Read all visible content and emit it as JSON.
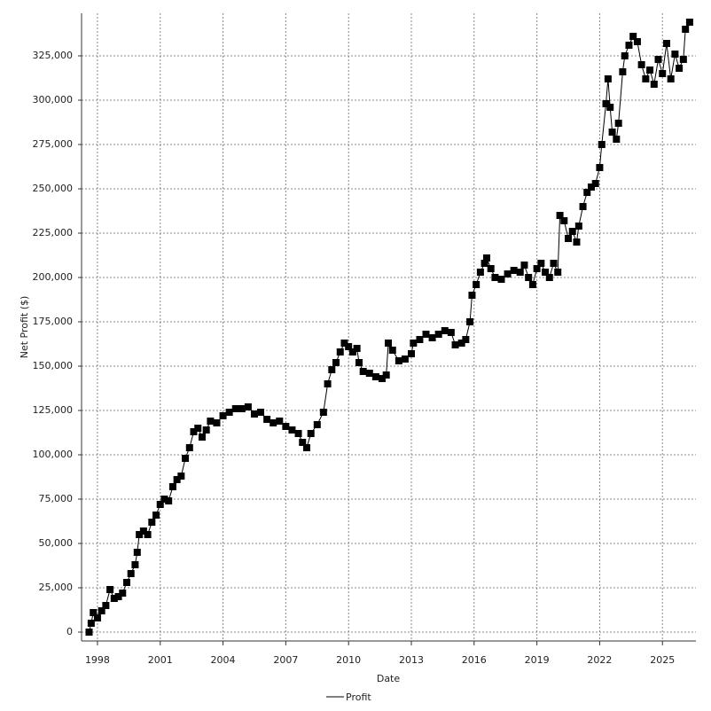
{
  "chart_data": {
    "type": "line",
    "x_label": "Date",
    "y_label": "Net Profit ($)",
    "x": [
      1997.6,
      1997.7,
      1997.8,
      1998.0,
      1998.2,
      1998.4,
      1998.6,
      1998.8,
      1999.0,
      1999.2,
      1999.4,
      1999.6,
      1999.8,
      1999.9,
      2000.0,
      2000.2,
      2000.4,
      2000.6,
      2000.8,
      2001.0,
      2001.2,
      2001.4,
      2001.6,
      2001.8,
      2002.0,
      2002.2,
      2002.4,
      2002.6,
      2002.8,
      2003.0,
      2003.2,
      2003.4,
      2003.7,
      2004.0,
      2004.3,
      2004.6,
      2004.9,
      2005.2,
      2005.5,
      2005.8,
      2006.1,
      2006.4,
      2006.7,
      2007.0,
      2007.3,
      2007.6,
      2007.8,
      2008.0,
      2008.2,
      2008.5,
      2008.8,
      2009.0,
      2009.2,
      2009.4,
      2009.6,
      2009.8,
      2010.0,
      2010.2,
      2010.4,
      2010.5,
      2010.7,
      2011.0,
      2011.3,
      2011.6,
      2011.8,
      2011.9,
      2012.1,
      2012.4,
      2012.7,
      2013.0,
      2013.1,
      2013.4,
      2013.7,
      2014.0,
      2014.3,
      2014.6,
      2014.9,
      2015.1,
      2015.4,
      2015.6,
      2015.8,
      2015.9,
      2016.1,
      2016.3,
      2016.5,
      2016.6,
      2016.8,
      2017.0,
      2017.3,
      2017.6,
      2017.9,
      2018.2,
      2018.4,
      2018.6,
      2018.8,
      2019.0,
      2019.2,
      2019.4,
      2019.6,
      2019.8,
      2020.0,
      2020.1,
      2020.3,
      2020.5,
      2020.7,
      2020.9,
      2021.0,
      2021.2,
      2021.4,
      2021.6,
      2021.8,
      2022.0,
      2022.1,
      2022.3,
      2022.4,
      2022.5,
      2022.6,
      2022.8,
      2022.9,
      2023.1,
      2023.2,
      2023.4,
      2023.6,
      2023.8,
      2024.0,
      2024.2,
      2024.4,
      2024.6,
      2024.8,
      2025.0,
      2025.2,
      2025.4,
      2025.6,
      2025.8,
      2026.0,
      2026.1,
      2026.3
    ],
    "series": [
      {
        "name": "Profit",
        "color": "#000000",
        "values": [
          0,
          5000,
          11000,
          8000,
          12000,
          15000,
          24000,
          19000,
          20000,
          22000,
          28000,
          33000,
          38000,
          45000,
          55000,
          57000,
          55000,
          62000,
          66000,
          72000,
          75000,
          74000,
          82000,
          86000,
          88000,
          98000,
          104000,
          113000,
          115000,
          110000,
          114000,
          119000,
          118000,
          122000,
          124000,
          126000,
          126000,
          127000,
          123000,
          124000,
          120000,
          118000,
          119000,
          116000,
          114000,
          112000,
          107000,
          104000,
          112000,
          117000,
          124000,
          140000,
          148000,
          152000,
          158000,
          163000,
          161000,
          158000,
          160000,
          152000,
          147000,
          146000,
          144000,
          143000,
          145000,
          163000,
          159000,
          153000,
          154000,
          157000,
          163000,
          165000,
          168000,
          166000,
          168000,
          170000,
          169000,
          162000,
          163000,
          165000,
          175000,
          190000,
          196000,
          203000,
          208000,
          211000,
          205000,
          200000,
          199000,
          202000,
          204000,
          203000,
          207000,
          200000,
          196000,
          205000,
          208000,
          203000,
          200000,
          208000,
          203000,
          235000,
          232000,
          222000,
          226000,
          220000,
          229000,
          240000,
          248000,
          251000,
          253000,
          262000,
          275000,
          298000,
          312000,
          296000,
          282000,
          278000,
          287000,
          316000,
          325000,
          331000,
          336000,
          333000,
          320000,
          312000,
          317000,
          309000,
          323000,
          315000,
          332000,
          312000,
          326000,
          318000,
          323000,
          340000,
          344000
        ]
      }
    ],
    "xlim": [
      1997.24,
      2026.6
    ],
    "xticks": [
      1998,
      2001,
      2004,
      2007,
      2010,
      2013,
      2016,
      2019,
      2022,
      2025
    ],
    "ylim": [
      -5000,
      349000
    ],
    "yticks": [
      0,
      {
        "value": 25000,
        "label": "25,000"
      },
      {
        "value": 50000,
        "label": "50,000"
      },
      {
        "value": 75000,
        "label": "75,000"
      },
      {
        "value": 100000,
        "label": "100,000"
      },
      {
        "value": 125000,
        "label": "125,000"
      },
      {
        "value": 150000,
        "label": "150,000"
      },
      {
        "value": 175000,
        "label": "175,000"
      },
      {
        "value": 200000,
        "label": "200,000"
      },
      {
        "value": 225000,
        "label": "225,000"
      },
      {
        "value": 250000,
        "label": "250,000"
      },
      {
        "value": 275000,
        "label": "275,000"
      },
      {
        "value": 300000,
        "label": "300,000"
      },
      {
        "value": 325000,
        "label": "325,000"
      }
    ],
    "grid": true,
    "legend": "bottom"
  }
}
